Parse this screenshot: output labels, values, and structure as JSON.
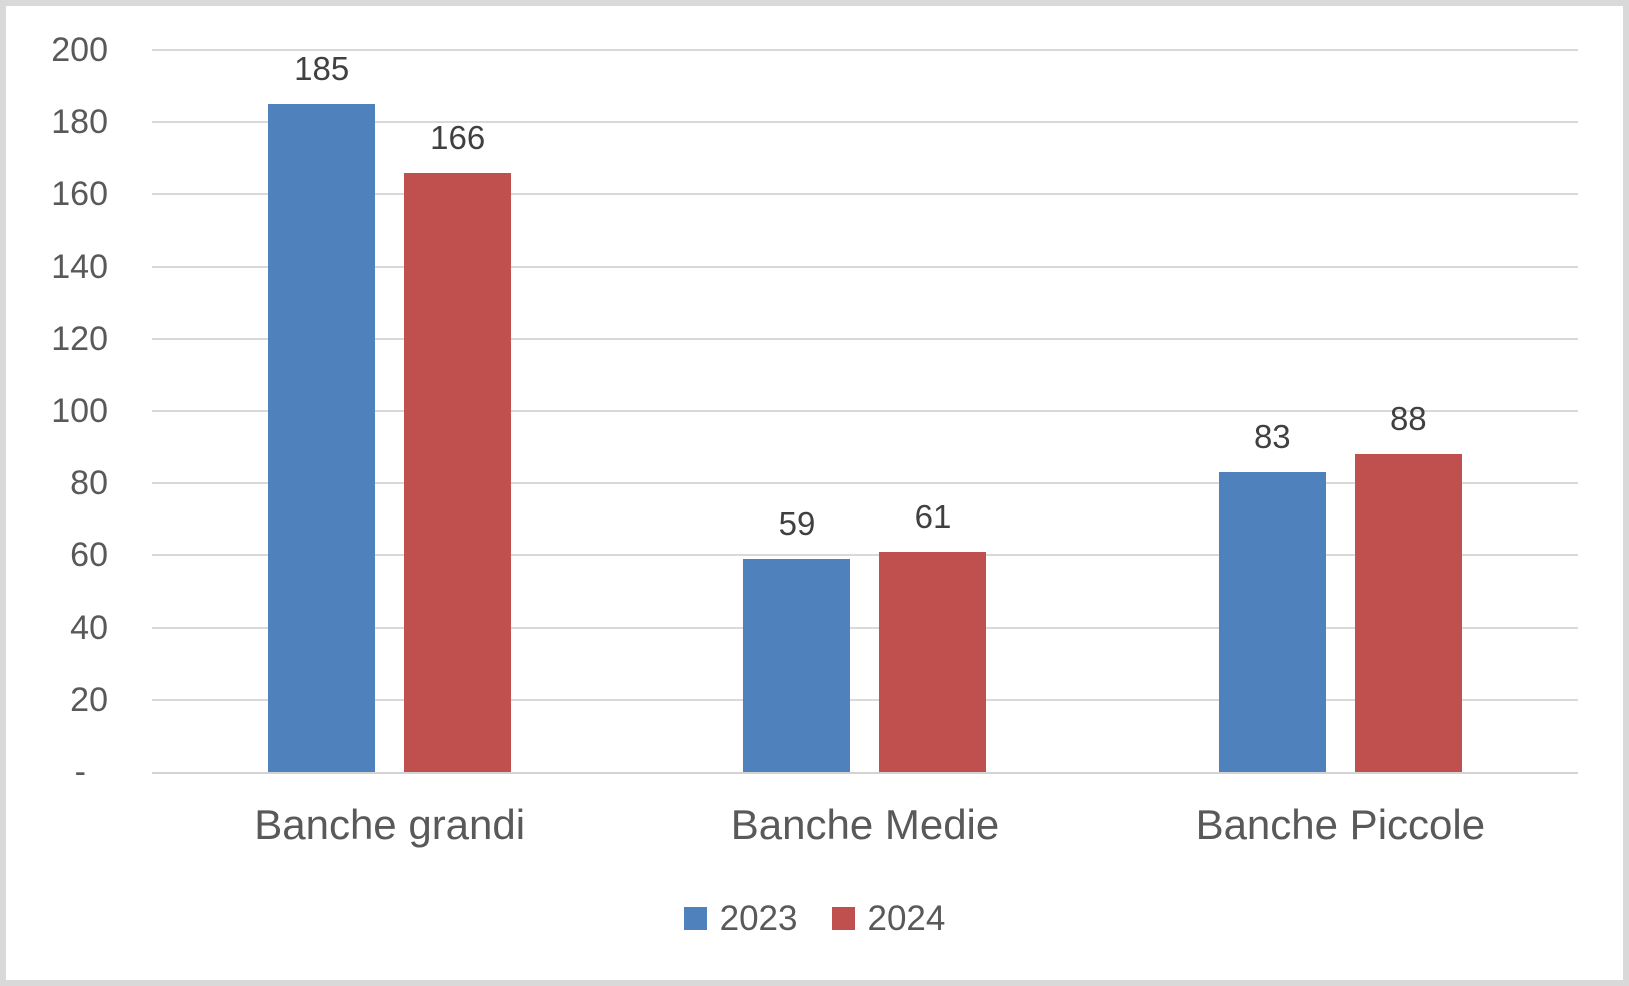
{
  "chart_data": {
    "type": "bar",
    "title": "",
    "xlabel": "",
    "ylabel": "",
    "categories": [
      "Banche grandi",
      "Banche Medie",
      "Banche Piccole"
    ],
    "series": [
      {
        "name": "2023",
        "color": "#4F81BD",
        "values": [
          185,
          59,
          83
        ]
      },
      {
        "name": "2024",
        "color": "#C0504D",
        "values": [
          166,
          61,
          88
        ]
      }
    ],
    "ylim": [
      0,
      200
    ],
    "ytick_step": 20,
    "ytick_labels": [
      "-",
      "20",
      "40",
      "60",
      "80",
      "100",
      "120",
      "140",
      "160",
      "180",
      "200"
    ],
    "grid": true,
    "data_labels": true,
    "legend_position": "bottom"
  },
  "colors": {
    "series_2023": "#4F81BD",
    "series_2024": "#C0504D",
    "gridline": "#D9D9D9",
    "axis_line": "#D3D3D3",
    "axis_text": "#595959",
    "category_text": "#595959",
    "legend_text": "#595959",
    "data_label_text": "#404040",
    "frame_border": "#D9D9D9",
    "background": "#FFFFFF"
  }
}
